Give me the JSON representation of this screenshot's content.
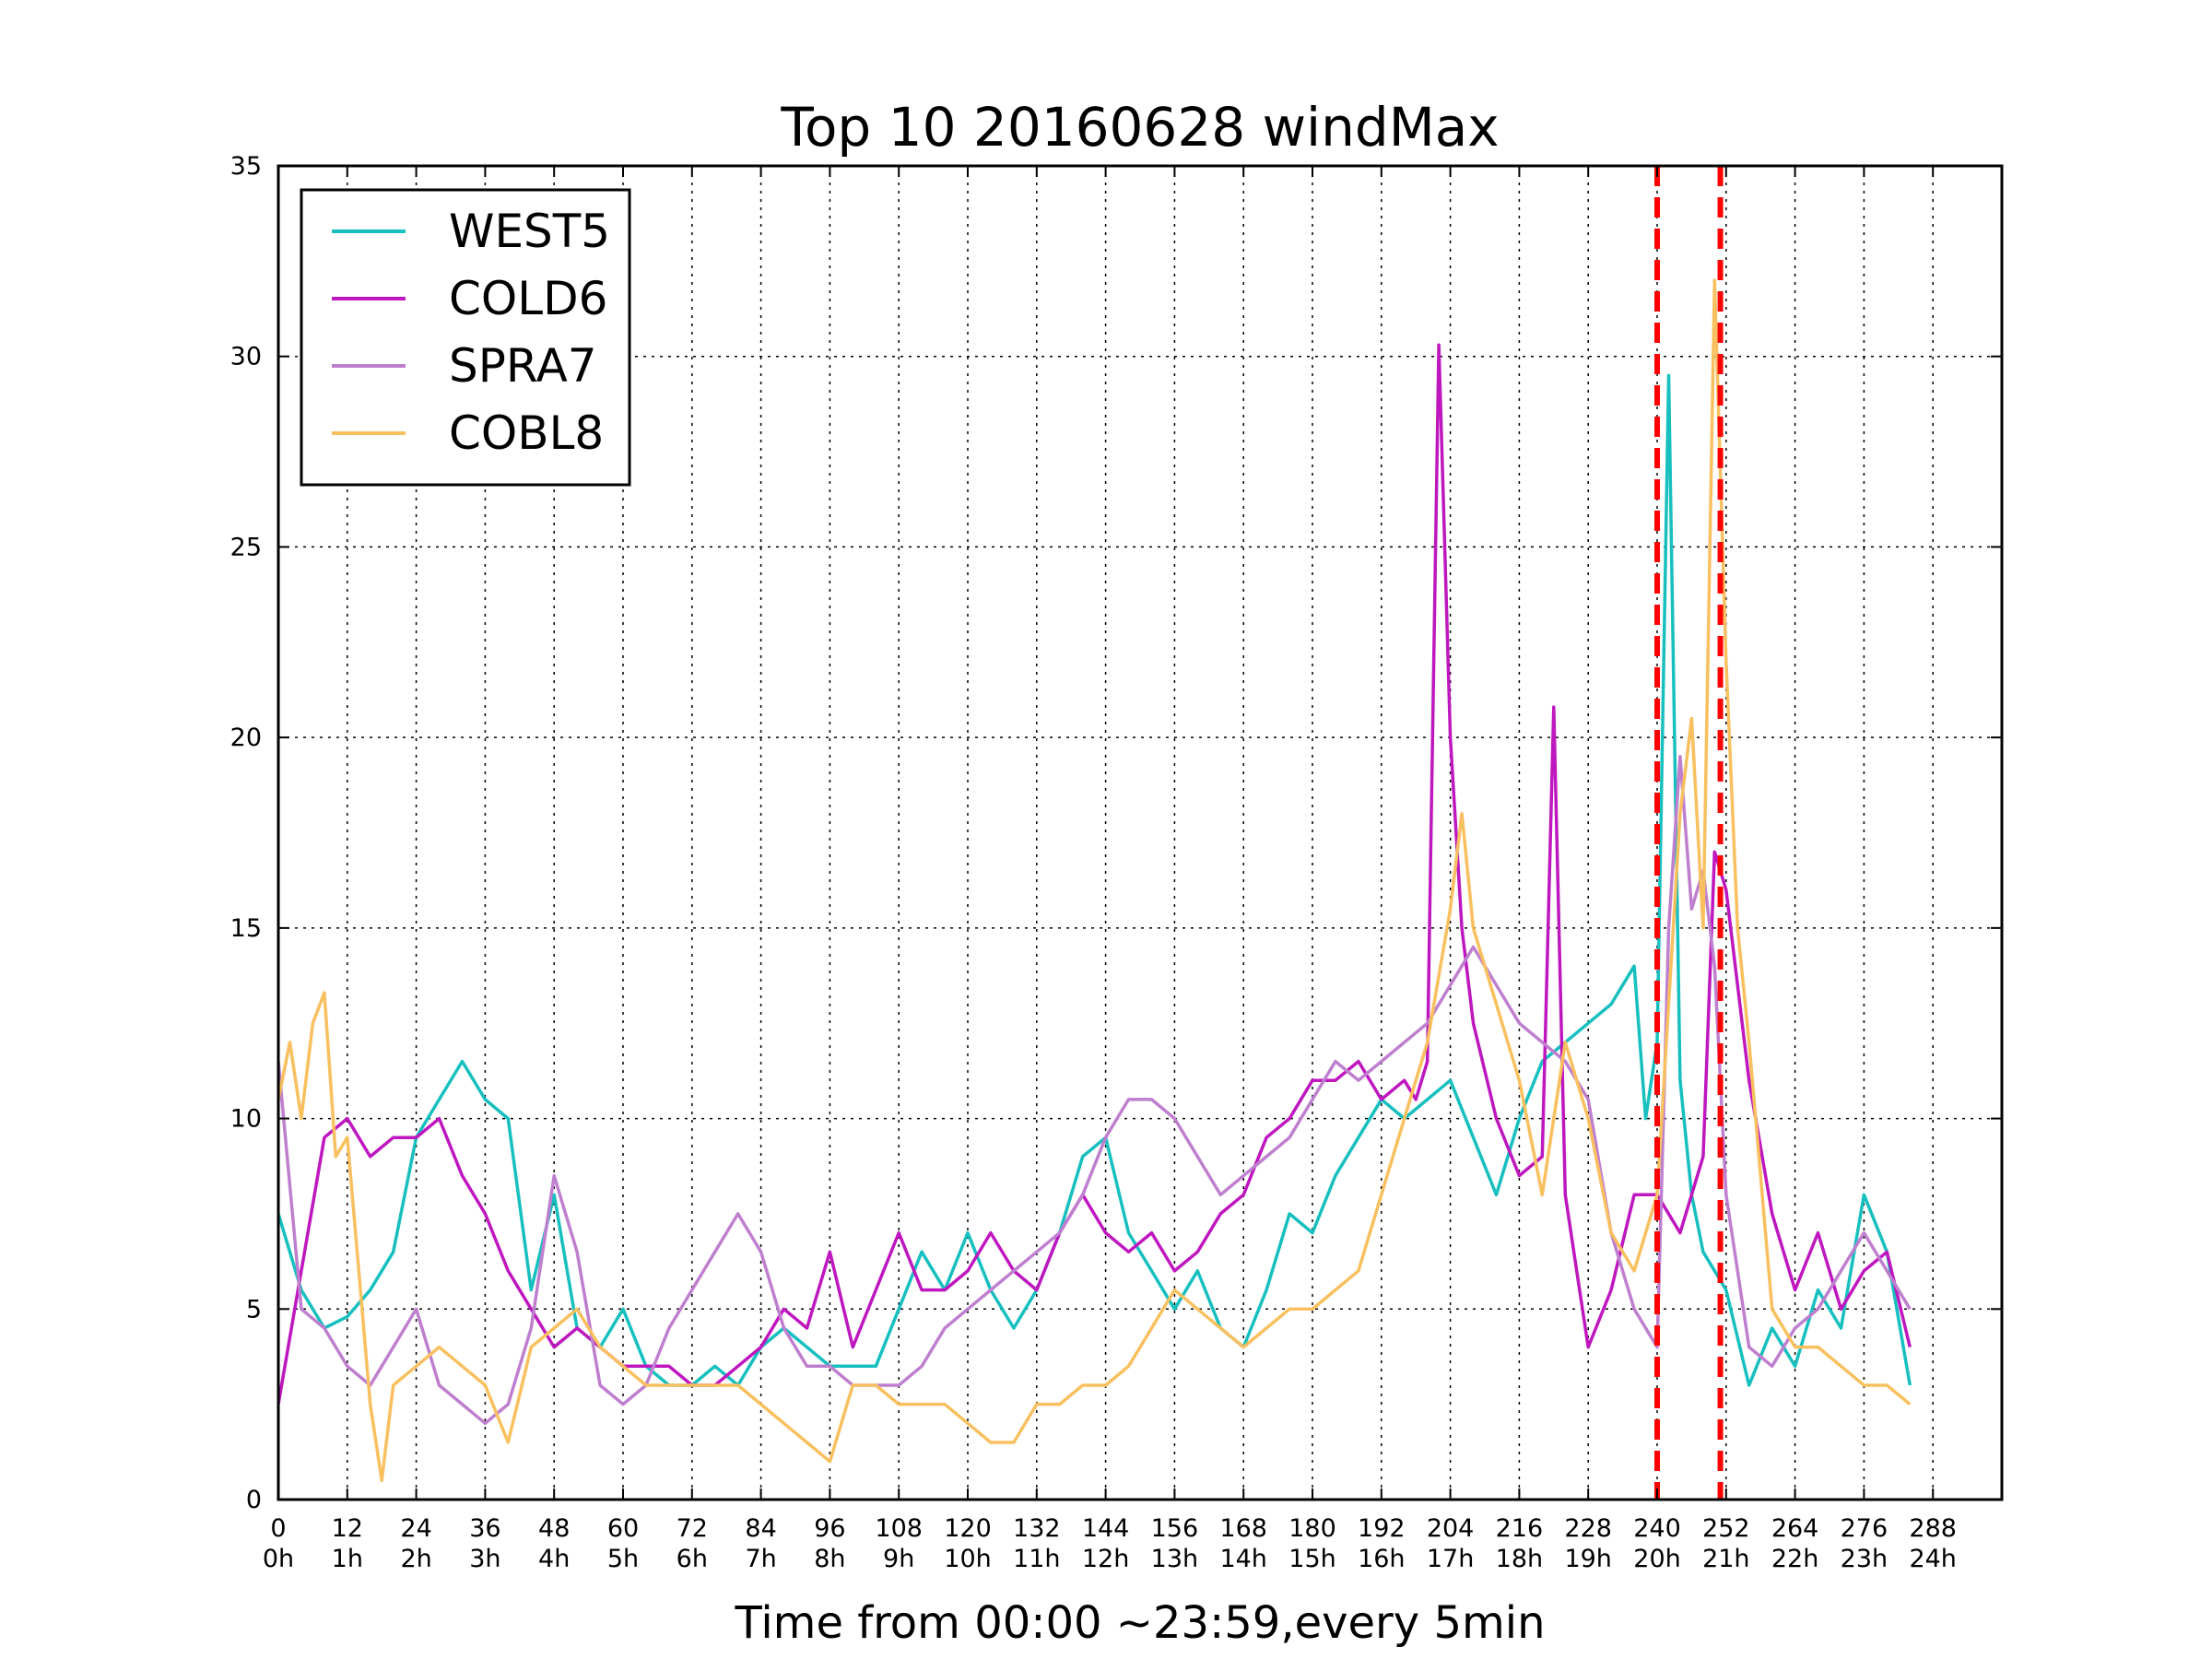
{
  "chart_data": {
    "type": "line",
    "title": "Top 10 20160628 windMax",
    "xlabel": "Time from 00:00 ~23:59,every 5min",
    "ylabel": "",
    "xlim": [
      0,
      300
    ],
    "ylim": [
      0,
      35
    ],
    "grid": true,
    "legend_position": "top-left",
    "x_ticks": [
      0,
      12,
      24,
      36,
      48,
      60,
      72,
      84,
      96,
      108,
      120,
      132,
      144,
      156,
      168,
      180,
      192,
      204,
      216,
      228,
      240,
      252,
      264,
      276,
      288
    ],
    "x_tick_labels_top": [
      "0",
      "12",
      "24",
      "36",
      "48",
      "60",
      "72",
      "84",
      "96",
      "108",
      "120",
      "132",
      "144",
      "156",
      "168",
      "180",
      "192",
      "204",
      "216",
      "228",
      "240",
      "252",
      "264",
      "276",
      "288"
    ],
    "x_tick_labels_bottom": [
      "0h",
      "1h",
      "2h",
      "3h",
      "4h",
      "5h",
      "6h",
      "7h",
      "8h",
      "9h",
      "10h",
      "11h",
      "12h",
      "13h",
      "14h",
      "15h",
      "16h",
      "17h",
      "18h",
      "19h",
      "20h",
      "21h",
      "22h",
      "23h",
      "24h"
    ],
    "y_ticks": [
      0,
      5,
      10,
      15,
      20,
      25,
      30,
      35
    ],
    "y_tick_labels": [
      "0",
      "5",
      "10",
      "15",
      "20",
      "25",
      "30",
      "35"
    ],
    "vertical_lines": [
      {
        "x": 240,
        "color": "#ff0000",
        "style": "dashed"
      },
      {
        "x": 251,
        "color": "#ff0000",
        "style": "dashed"
      }
    ],
    "series": [
      {
        "name": "WEST5",
        "color": "#17bfbf",
        "x": [
          0,
          4,
          8,
          12,
          16,
          20,
          24,
          28,
          32,
          36,
          40,
          44,
          48,
          52,
          56,
          60,
          64,
          68,
          72,
          76,
          80,
          84,
          88,
          92,
          96,
          100,
          104,
          108,
          112,
          116,
          120,
          124,
          128,
          132,
          136,
          140,
          144,
          148,
          152,
          156,
          160,
          164,
          168,
          172,
          176,
          180,
          184,
          188,
          192,
          196,
          200,
          204,
          208,
          212,
          216,
          220,
          224,
          228,
          232,
          236,
          238,
          240,
          242,
          244,
          246,
          248,
          252,
          256,
          260,
          264,
          268,
          272,
          276,
          280,
          284
        ],
        "y": [
          7.5,
          5.5,
          4.5,
          4.8,
          5.5,
          6.5,
          9.5,
          10.5,
          11.5,
          10.5,
          10.0,
          5.5,
          8.0,
          4.5,
          4.0,
          5.0,
          3.5,
          3.0,
          3.0,
          3.5,
          3.0,
          4.0,
          4.5,
          4.0,
          3.5,
          3.5,
          3.5,
          5.0,
          6.5,
          5.5,
          7.0,
          5.5,
          4.5,
          5.5,
          7.0,
          9.0,
          9.5,
          7.0,
          6.0,
          5.0,
          6.0,
          4.5,
          4.0,
          5.5,
          7.5,
          7.0,
          8.5,
          9.5,
          10.5,
          10.0,
          10.5,
          11.0,
          9.5,
          8.0,
          10.0,
          11.5,
          12.0,
          12.5,
          13.0,
          14.0,
          10.0,
          12.0,
          29.5,
          11.0,
          8.0,
          6.5,
          5.5,
          3.0,
          4.5,
          3.5,
          5.5,
          4.5,
          8.0,
          6.5,
          3.0
        ]
      },
      {
        "name": "COLD6",
        "color": "#bf17bf",
        "x": [
          0,
          4,
          8,
          12,
          16,
          20,
          24,
          28,
          32,
          36,
          40,
          44,
          48,
          52,
          56,
          60,
          64,
          68,
          72,
          76,
          80,
          84,
          88,
          92,
          96,
          100,
          104,
          108,
          112,
          116,
          120,
          124,
          128,
          132,
          136,
          140,
          144,
          148,
          152,
          156,
          160,
          164,
          168,
          172,
          176,
          180,
          184,
          188,
          192,
          196,
          198,
          200,
          202,
          204,
          206,
          208,
          212,
          216,
          220,
          222,
          224,
          226,
          228,
          232,
          236,
          240,
          244,
          248,
          250,
          252,
          256,
          260,
          264,
          268,
          272,
          276,
          280,
          284
        ],
        "y": [
          2.5,
          6.0,
          9.5,
          10.0,
          9.0,
          9.5,
          9.5,
          10.0,
          8.5,
          7.5,
          6.0,
          5.0,
          4.0,
          4.5,
          4.0,
          3.5,
          3.5,
          3.5,
          3.0,
          3.0,
          3.5,
          4.0,
          5.0,
          4.5,
          6.5,
          4.0,
          5.5,
          7.0,
          5.5,
          5.5,
          6.0,
          7.0,
          6.0,
          5.5,
          7.0,
          8.0,
          7.0,
          6.5,
          7.0,
          6.0,
          6.5,
          7.5,
          8.0,
          9.5,
          10.0,
          11.0,
          11.0,
          11.5,
          10.5,
          11.0,
          10.5,
          11.5,
          30.3,
          20.0,
          15.0,
          12.5,
          10.0,
          8.5,
          9.0,
          20.8,
          8.0,
          6.0,
          4.0,
          5.5,
          8.0,
          8.0,
          7.0,
          9.0,
          17.0,
          16.0,
          11.0,
          7.5,
          5.5,
          7.0,
          5.0,
          6.0,
          6.5,
          4.0
        ]
      },
      {
        "name": "SPRA7",
        "color": "#bf7fcf",
        "x": [
          0,
          4,
          8,
          12,
          16,
          20,
          24,
          28,
          32,
          36,
          40,
          44,
          48,
          52,
          56,
          60,
          64,
          68,
          72,
          76,
          80,
          84,
          88,
          92,
          96,
          100,
          104,
          108,
          112,
          116,
          120,
          124,
          128,
          132,
          136,
          140,
          144,
          148,
          152,
          156,
          160,
          164,
          168,
          172,
          176,
          180,
          184,
          188,
          192,
          196,
          200,
          204,
          208,
          212,
          216,
          220,
          224,
          228,
          232,
          236,
          240,
          242,
          244,
          246,
          248,
          250,
          252,
          256,
          260,
          264,
          268,
          272,
          276,
          280,
          284
        ],
        "y": [
          11.5,
          5.0,
          4.5,
          3.5,
          3.0,
          4.0,
          5.0,
          3.0,
          2.5,
          2.0,
          2.5,
          4.5,
          8.5,
          6.5,
          3.0,
          2.5,
          3.0,
          4.5,
          5.5,
          6.5,
          7.5,
          6.5,
          4.5,
          3.5,
          3.5,
          3.0,
          3.0,
          3.0,
          3.5,
          4.5,
          5.0,
          5.5,
          6.0,
          6.5,
          7.0,
          8.0,
          9.5,
          10.5,
          10.5,
          10.0,
          9.0,
          8.0,
          8.5,
          9.0,
          9.5,
          10.5,
          11.5,
          11.0,
          11.5,
          12.0,
          12.5,
          13.5,
          14.5,
          13.5,
          12.5,
          12.0,
          11.5,
          10.5,
          7.0,
          5.0,
          4.0,
          15.0,
          19.5,
          15.5,
          16.5,
          14.0,
          8.0,
          4.0,
          3.5,
          4.5,
          5.0,
          6.0,
          7.0,
          6.0,
          5.0
        ]
      },
      {
        "name": "COBL8",
        "color": "#f8c05f",
        "x": [
          0,
          2,
          4,
          6,
          8,
          10,
          12,
          14,
          16,
          18,
          20,
          24,
          28,
          32,
          36,
          40,
          44,
          48,
          52,
          56,
          60,
          64,
          68,
          72,
          76,
          80,
          84,
          88,
          92,
          96,
          100,
          104,
          108,
          112,
          116,
          120,
          124,
          128,
          132,
          136,
          140,
          144,
          148,
          152,
          156,
          160,
          164,
          168,
          172,
          176,
          180,
          184,
          188,
          192,
          196,
          200,
          204,
          206,
          208,
          212,
          216,
          220,
          224,
          228,
          232,
          236,
          240,
          244,
          246,
          248,
          250,
          252,
          254,
          256,
          260,
          264,
          268,
          272,
          276,
          280,
          284
        ],
        "y": [
          10.5,
          12.0,
          10.0,
          12.5,
          13.3,
          9.0,
          9.5,
          6.0,
          2.5,
          0.5,
          3.0,
          3.5,
          4.0,
          3.5,
          3.0,
          1.5,
          4.0,
          4.5,
          5.0,
          4.0,
          3.5,
          3.0,
          3.0,
          3.0,
          3.0,
          3.0,
          2.5,
          2.0,
          1.5,
          1.0,
          3.0,
          3.0,
          2.5,
          2.5,
          2.5,
          2.0,
          1.5,
          1.5,
          2.5,
          2.5,
          3.0,
          3.0,
          3.5,
          4.5,
          5.5,
          5.0,
          4.5,
          4.0,
          4.5,
          5.0,
          5.0,
          5.5,
          6.0,
          8.0,
          10.0,
          12.0,
          15.5,
          18.0,
          15.0,
          13.0,
          11.0,
          8.0,
          12.0,
          10.0,
          7.0,
          6.0,
          8.0,
          18.0,
          20.5,
          15.0,
          32.0,
          22.0,
          15.0,
          12.0,
          5.0,
          4.0,
          4.0,
          3.5,
          3.0,
          3.0,
          2.5
        ]
      }
    ]
  }
}
